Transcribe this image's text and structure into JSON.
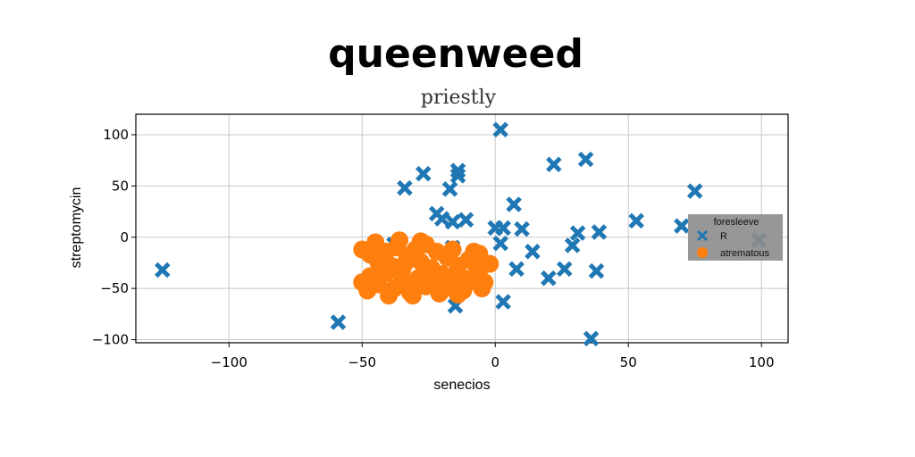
{
  "title": "queenweed",
  "subtitle": "priestly",
  "colors": {
    "series_R": "#1f77b4",
    "series_atrematous": "#ff7f0e",
    "legend_bg": "#8c8c8c",
    "grid": "#c8c8c8"
  },
  "chart_data": {
    "type": "scatter",
    "xlabel": "senecios",
    "ylabel": "streptomycin",
    "xlim": [
      -135,
      110
    ],
    "ylim": [
      -103,
      120
    ],
    "xticks": [
      -100,
      -50,
      0,
      50,
      100
    ],
    "yticks": [
      -100,
      -50,
      0,
      50,
      100
    ],
    "xtick_labels": [
      "−100",
      "−50",
      "0",
      "50",
      "100"
    ],
    "ytick_labels": [
      "−100",
      "−50",
      "0",
      "50",
      "100"
    ],
    "grid": true,
    "legend": {
      "title": "foresleeve",
      "placement": "right"
    },
    "series": [
      {
        "name": "R",
        "marker": "x",
        "points": [
          [
            -125,
            -32
          ],
          [
            -59,
            -83
          ],
          [
            -38,
            -7
          ],
          [
            -34,
            48
          ],
          [
            -27,
            62
          ],
          [
            -17,
            47
          ],
          [
            -14,
            65
          ],
          [
            -14,
            60
          ],
          [
            -22,
            23
          ],
          [
            -20,
            18
          ],
          [
            -16,
            15
          ],
          [
            -11,
            17
          ],
          [
            -16,
            -10
          ],
          [
            -15,
            -67
          ],
          [
            2,
            105
          ],
          [
            0,
            9
          ],
          [
            3,
            9
          ],
          [
            7,
            32
          ],
          [
            10,
            8
          ],
          [
            2,
            -6
          ],
          [
            14,
            -14
          ],
          [
            8,
            -31
          ],
          [
            3,
            -63
          ],
          [
            22,
            71
          ],
          [
            34,
            76
          ],
          [
            31,
            4
          ],
          [
            29,
            -8
          ],
          [
            26,
            -31
          ],
          [
            20,
            -40
          ],
          [
            39,
            5
          ],
          [
            38,
            -33
          ],
          [
            36,
            -99
          ],
          [
            53,
            16
          ],
          [
            70,
            11
          ],
          [
            75,
            45
          ],
          [
            99,
            -3
          ]
        ]
      },
      {
        "name": "atrematous",
        "marker": "o",
        "points": [
          [
            -50,
            -12
          ],
          [
            -47,
            -17
          ],
          [
            -44,
            -24
          ],
          [
            -41,
            -14
          ],
          [
            -39,
            -28
          ],
          [
            -37,
            -10
          ],
          [
            -35,
            -32
          ],
          [
            -33,
            -18
          ],
          [
            -30,
            -12
          ],
          [
            -28,
            -24
          ],
          [
            -26,
            -7
          ],
          [
            -24,
            -30
          ],
          [
            -22,
            -14
          ],
          [
            -20,
            -36
          ],
          [
            -18,
            -20
          ],
          [
            -16,
            -12
          ],
          [
            -14,
            -28
          ],
          [
            -12,
            -40
          ],
          [
            -10,
            -22
          ],
          [
            -8,
            -14
          ],
          [
            -6,
            -32
          ],
          [
            -4,
            -44
          ],
          [
            -2,
            -26
          ],
          [
            -50,
            -44
          ],
          [
            -47,
            -38
          ],
          [
            -44,
            -46
          ],
          [
            -41,
            -35
          ],
          [
            -38,
            -50
          ],
          [
            -35,
            -42
          ],
          [
            -32,
            -54
          ],
          [
            -29,
            -40
          ],
          [
            -26,
            -48
          ],
          [
            -23,
            -38
          ],
          [
            -20,
            -52
          ],
          [
            -17,
            -44
          ],
          [
            -14,
            -56
          ],
          [
            -11,
            -46
          ],
          [
            -8,
            -38
          ],
          [
            -5,
            -50
          ],
          [
            -3,
            -26
          ],
          [
            -45,
            -5
          ],
          [
            -36,
            -3
          ],
          [
            -28,
            -4
          ],
          [
            -48,
            -52
          ],
          [
            -40,
            -57
          ],
          [
            -31,
            -57
          ],
          [
            -21,
            -55
          ],
          [
            -12,
            -52
          ],
          [
            -6,
            -16
          ],
          [
            -25,
            -44
          ],
          [
            -15,
            -36
          ],
          [
            -34,
            -26
          ],
          [
            -43,
            -30
          ]
        ]
      }
    ]
  }
}
